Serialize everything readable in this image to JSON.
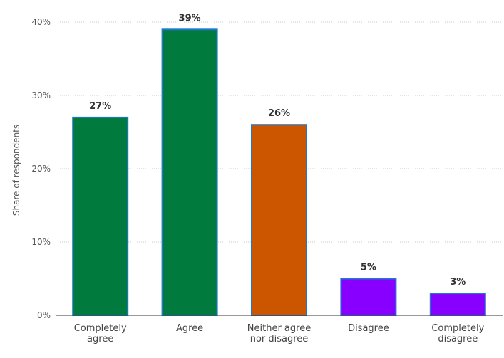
{
  "chart_data": {
    "type": "bar",
    "title": "",
    "xlabel": "",
    "ylabel": "Share of respondents",
    "ylim": [
      0,
      40
    ],
    "yticks": [
      0,
      10,
      20,
      30,
      40
    ],
    "ytick_labels": [
      "0%",
      "10%",
      "20%",
      "30%",
      "40%"
    ],
    "grid": true,
    "categories": [
      [
        "Completely",
        "agree"
      ],
      [
        "Agree"
      ],
      [
        "Neither agree",
        "nor disagree"
      ],
      [
        "Disagree"
      ],
      [
        "Completely",
        "disagree"
      ]
    ],
    "values": [
      27,
      39,
      26,
      5,
      3
    ],
    "data_labels": [
      "27%",
      "39%",
      "26%",
      "5%",
      "3%"
    ],
    "bar_colors": [
      "#007a3d",
      "#007a3d",
      "#cc5500",
      "#8800ff",
      "#8800ff"
    ],
    "bar_border_color": "#1f77d0"
  }
}
